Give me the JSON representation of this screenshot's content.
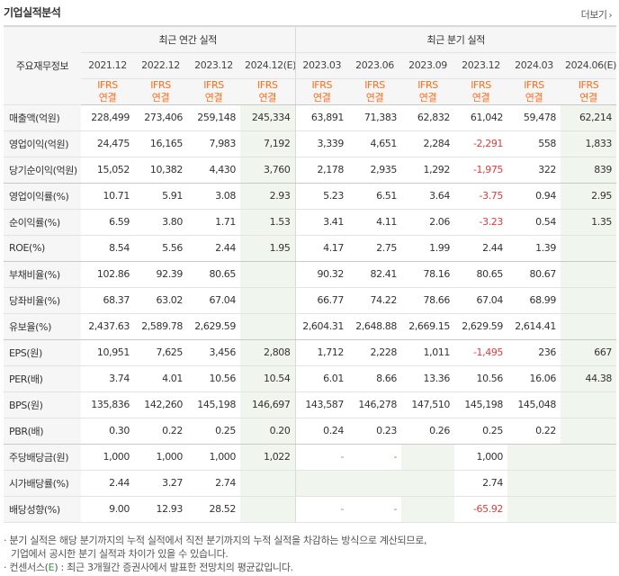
{
  "header": {
    "title": "기업실적분석",
    "more_label": "더보기",
    "more_arrow": "›"
  },
  "table": {
    "label_header": "주요재무정보",
    "groups": {
      "annual": "최근 연간 실적",
      "quarterly": "최근 분기 실적"
    },
    "periods": [
      "2021.12",
      "2022.12",
      "2023.12",
      "2024.12(E)",
      "2023.03",
      "2023.06",
      "2023.09",
      "2023.12",
      "2024.03",
      "2024.06(E)"
    ],
    "acct_top": "IFRS",
    "acct_bottom": "연결",
    "rows": [
      {
        "label": "매출액(억원)",
        "values": [
          "228,499",
          "273,406",
          "259,148",
          "245,334",
          "63,891",
          "71,383",
          "62,832",
          "61,042",
          "59,478",
          "62,214"
        ]
      },
      {
        "label": "영업이익(억원)",
        "values": [
          "24,475",
          "16,165",
          "7,983",
          "7,192",
          "3,339",
          "4,651",
          "2,284",
          "-2,291",
          "558",
          "1,833"
        ]
      },
      {
        "label": "당기순이익(억원)",
        "values": [
          "15,052",
          "10,382",
          "4,430",
          "3,760",
          "2,178",
          "2,935",
          "1,292",
          "-1,975",
          "322",
          "839"
        ]
      },
      {
        "label": "영업이익률(%)",
        "values": [
          "10.71",
          "5.91",
          "3.08",
          "2.93",
          "5.23",
          "6.51",
          "3.64",
          "-3.75",
          "0.94",
          "2.95"
        ]
      },
      {
        "label": "순이익률(%)",
        "values": [
          "6.59",
          "3.80",
          "1.71",
          "1.53",
          "3.41",
          "4.11",
          "2.06",
          "-3.23",
          "0.54",
          "1.35"
        ]
      },
      {
        "label": "ROE(%)",
        "values": [
          "8.54",
          "5.56",
          "2.44",
          "1.95",
          "4.17",
          "2.75",
          "1.99",
          "2.44",
          "1.39",
          ""
        ]
      },
      {
        "label": "부채비율(%)",
        "values": [
          "102.86",
          "92.39",
          "80.65",
          "",
          "90.32",
          "82.41",
          "78.16",
          "80.65",
          "80.67",
          ""
        ]
      },
      {
        "label": "당좌비율(%)",
        "values": [
          "68.37",
          "63.02",
          "67.04",
          "",
          "66.77",
          "74.22",
          "78.66",
          "67.04",
          "68.99",
          ""
        ]
      },
      {
        "label": "유보율(%)",
        "values": [
          "2,437.63",
          "2,589.78",
          "2,629.59",
          "",
          "2,604.31",
          "2,648.88",
          "2,669.15",
          "2,629.59",
          "2,614.41",
          ""
        ]
      },
      {
        "label": "EPS(원)",
        "values": [
          "10,951",
          "7,625",
          "3,456",
          "2,808",
          "1,712",
          "2,228",
          "1,011",
          "-1,495",
          "236",
          "667"
        ]
      },
      {
        "label": "PER(배)",
        "values": [
          "3.74",
          "4.01",
          "10.56",
          "10.54",
          "6.01",
          "8.66",
          "13.36",
          "10.56",
          "16.06",
          "44.38"
        ]
      },
      {
        "label": "BPS(원)",
        "values": [
          "135,836",
          "142,260",
          "145,198",
          "146,697",
          "143,587",
          "146,278",
          "147,510",
          "145,198",
          "145,048",
          ""
        ]
      },
      {
        "label": "PBR(배)",
        "values": [
          "0.30",
          "0.22",
          "0.25",
          "0.20",
          "0.24",
          "0.23",
          "0.26",
          "0.25",
          "0.22",
          ""
        ]
      },
      {
        "label": "주당배당금(원)",
        "values": [
          "1,000",
          "1,000",
          "1,000",
          "1,022",
          "-",
          "-",
          "",
          "1,000",
          "",
          ""
        ]
      },
      {
        "label": "시가배당률(%)",
        "values": [
          "2.44",
          "3.27",
          "2.74",
          "",
          "",
          "",
          "",
          "2.74",
          "",
          ""
        ]
      },
      {
        "label": "배당성향(%)",
        "values": [
          "9.00",
          "12.93",
          "28.52",
          "",
          "-",
          "-",
          "",
          "-65.92",
          "",
          ""
        ]
      }
    ]
  },
  "notes": {
    "line1": "· 분기 실적은 해당 분기까지의 누적 실적에서 직전 분기까지의 누적 실적을 차감하는 방식으로 계산되므로,",
    "line2": "기업에서 공시한 분기 실적과 차이가 있을 수 있습니다.",
    "line3_prefix": "· 컨센서스(",
    "line3_mark": "E",
    "line3_suffix": ") : 최근 3개월간 증권사에서 발표한 전망치의 평균값입니다."
  }
}
